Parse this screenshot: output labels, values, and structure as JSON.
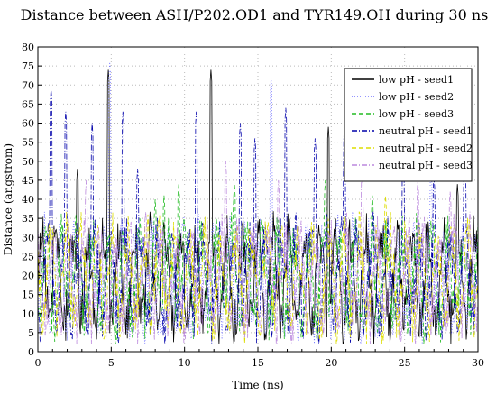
{
  "chart_data": {
    "type": "line",
    "title": "Distance between ASH/P202.OD1 and TYR149.OH during 30 ns",
    "xlabel": "Time (ns)",
    "ylabel": "Distance (angstrom)",
    "xlim": [
      0,
      30
    ],
    "ylim": [
      0,
      80
    ],
    "x_ticks": [
      0,
      5,
      10,
      15,
      20,
      25,
      30
    ],
    "y_ticks": [
      0,
      5,
      10,
      15,
      20,
      25,
      30,
      35,
      40,
      45,
      50,
      55,
      60,
      65,
      70,
      75,
      80
    ],
    "grid": true,
    "legend_position": "top-right",
    "series": [
      {
        "name": "low pH - seed1",
        "color": "#000000",
        "dash": "solid",
        "peaks": [
          [
            1.1,
            33
          ],
          [
            2.7,
            48
          ],
          [
            4.8,
            74
          ],
          [
            11.8,
            74
          ],
          [
            19.8,
            59
          ],
          [
            28.6,
            44
          ]
        ]
      },
      {
        "name": "low pH - seed2",
        "color": "#7070ff",
        "dash": "dotted",
        "peaks": [
          [
            4.9,
            76
          ],
          [
            15.9,
            72
          ],
          [
            26.8,
            48
          ]
        ]
      },
      {
        "name": "low pH - seed3",
        "color": "#22bb22",
        "dash": "dashed",
        "peaks": [
          [
            8.0,
            40
          ],
          [
            8.6,
            41
          ],
          [
            9.6,
            44
          ],
          [
            13.4,
            44
          ],
          [
            19.6,
            45
          ],
          [
            22.8,
            41
          ]
        ]
      },
      {
        "name": "neutral pH - seed1",
        "color": "#0000aa",
        "dash": "dashdot",
        "peaks": [
          [
            0.9,
            69
          ],
          [
            1.9,
            63
          ],
          [
            3.7,
            60
          ],
          [
            5.8,
            63
          ],
          [
            6.8,
            48
          ],
          [
            10.8,
            63
          ],
          [
            13.8,
            60
          ],
          [
            14.8,
            56
          ],
          [
            16.9,
            64
          ],
          [
            18.9,
            56
          ],
          [
            20.9,
            59
          ],
          [
            24.9,
            55
          ],
          [
            27.0,
            46
          ],
          [
            29.1,
            60
          ]
        ]
      },
      {
        "name": "neutral pH - seed2",
        "color": "#dddd00",
        "dash": "dashed",
        "peaks": [
          [
            7.5,
            36
          ],
          [
            23.7,
            41
          ]
        ]
      },
      {
        "name": "neutral pH - seed3",
        "color": "#bb88dd",
        "dash": "dashdot",
        "peaks": [
          [
            3.3,
            45
          ],
          [
            12.8,
            50
          ],
          [
            16.4,
            45
          ],
          [
            22.1,
            47
          ],
          [
            25.9,
            45
          ],
          [
            28.1,
            42
          ]
        ]
      }
    ]
  }
}
